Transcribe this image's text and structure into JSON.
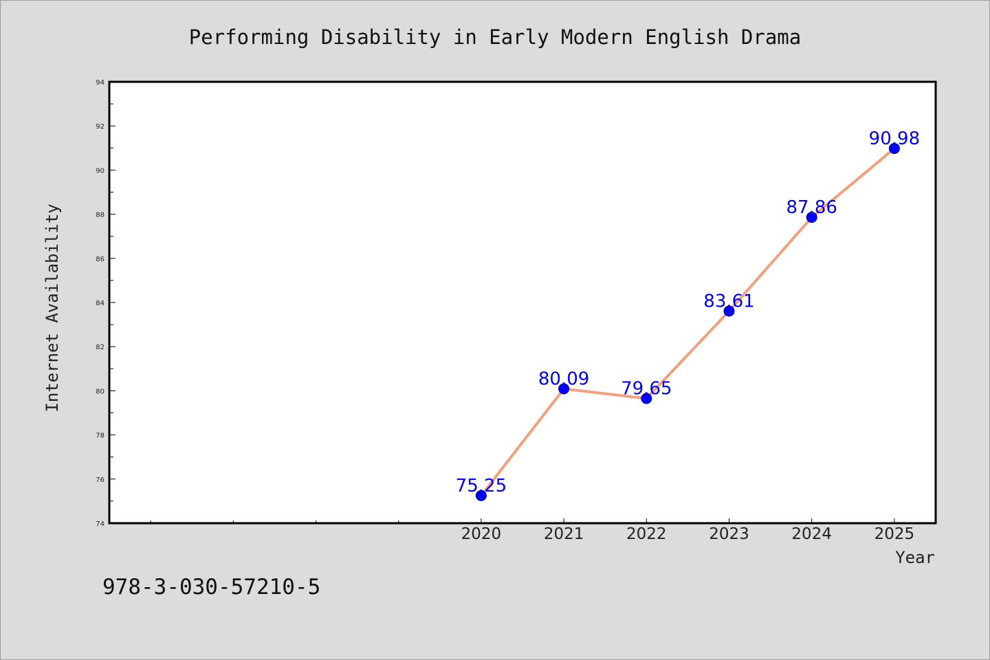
{
  "chart_data": {
    "type": "line",
    "title": "Performing Disability in Early Modern English Drama",
    "xlabel": "Year",
    "ylabel": "Internet Availability",
    "x": [
      2020,
      2021,
      2022,
      2023,
      2024,
      2025
    ],
    "series": [
      {
        "values": [
          75.25,
          80.09,
          79.65,
          83.61,
          87.86,
          90.98
        ]
      }
    ],
    "xlim": [
      2015.5,
      2025.5
    ],
    "ylim": [
      74,
      94
    ],
    "yticks": [
      74,
      76,
      78,
      80,
      82,
      84,
      86,
      88,
      90,
      92,
      94
    ],
    "xticks_labeled": [
      2020,
      2021,
      2022,
      2023,
      2024,
      2025
    ],
    "xticks_minor_unlabeled": [
      2016,
      2017,
      2018,
      2019
    ],
    "grid": false,
    "line_color": "#f4a07f",
    "marker_color": "#0000ff",
    "label_color": "#0000ff"
  },
  "footer_text": "978-3-030-57210-5"
}
